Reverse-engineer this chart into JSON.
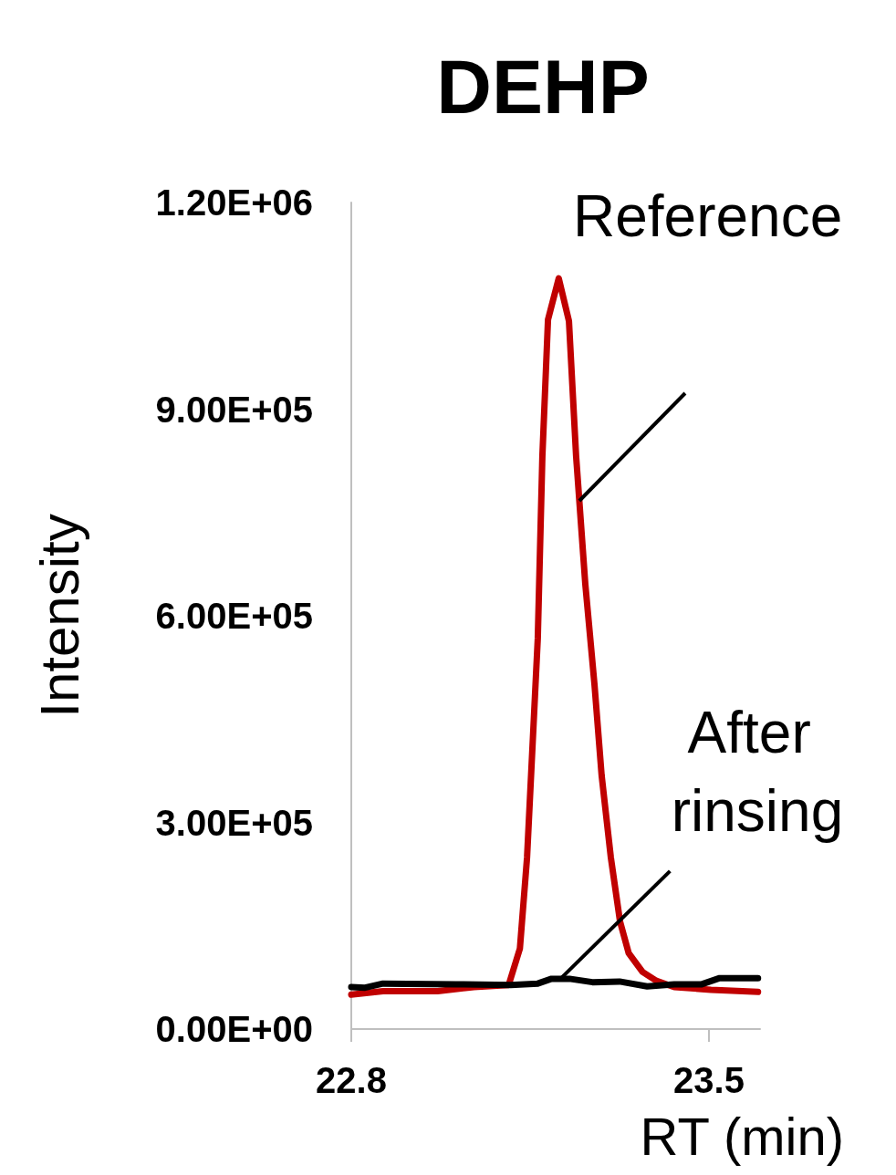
{
  "chart_data": {
    "type": "line",
    "title": "DEHP",
    "xlabel": "RT (min)",
    "ylabel": "Intensity",
    "xlim": [
      22.8,
      23.6
    ],
    "xticks": [
      22.8,
      23.5
    ],
    "ylim": [
      0,
      1200000
    ],
    "yticks": [
      {
        "value": 0,
        "label": "0.00E+00"
      },
      {
        "value": 300000,
        "label": "3.00E+05"
      },
      {
        "value": 600000,
        "label": "6.00E+05"
      },
      {
        "value": 900000,
        "label": "9.00E+05"
      },
      {
        "value": 1200000,
        "label": "1.20E+06"
      }
    ],
    "grid": false,
    "legend": false,
    "marker": "none",
    "line_style": "solid",
    "series": [
      {
        "name": "Reference",
        "color": "#c00000",
        "x": [
          22.8,
          22.862,
          22.969,
          23.04,
          23.108,
          23.13,
          23.144,
          23.165,
          23.174,
          23.185,
          23.206,
          23.226,
          23.24,
          23.258,
          23.276,
          23.29,
          23.308,
          23.326,
          23.343,
          23.37,
          23.397,
          23.432,
          23.504,
          23.596
        ],
        "values": [
          50000,
          55000,
          55000,
          61000,
          64000,
          117000,
          249000,
          567000,
          832000,
          1030000,
          1090000,
          1028000,
          832000,
          646000,
          500000,
          368000,
          249000,
          156000,
          110000,
          83000,
          70000,
          61000,
          57000,
          54000
        ]
      },
      {
        "name": "After rinsing",
        "color": "#000000",
        "x": [
          22.8,
          22.827,
          22.862,
          23.005,
          23.112,
          23.165,
          23.192,
          23.227,
          23.272,
          23.325,
          23.379,
          23.432,
          23.486,
          23.521,
          23.596
        ],
        "values": [
          61000,
          60000,
          66000,
          65000,
          64000,
          66000,
          73000,
          73000,
          68000,
          69000,
          62000,
          65000,
          65000,
          74000,
          74000
        ]
      }
    ]
  }
}
